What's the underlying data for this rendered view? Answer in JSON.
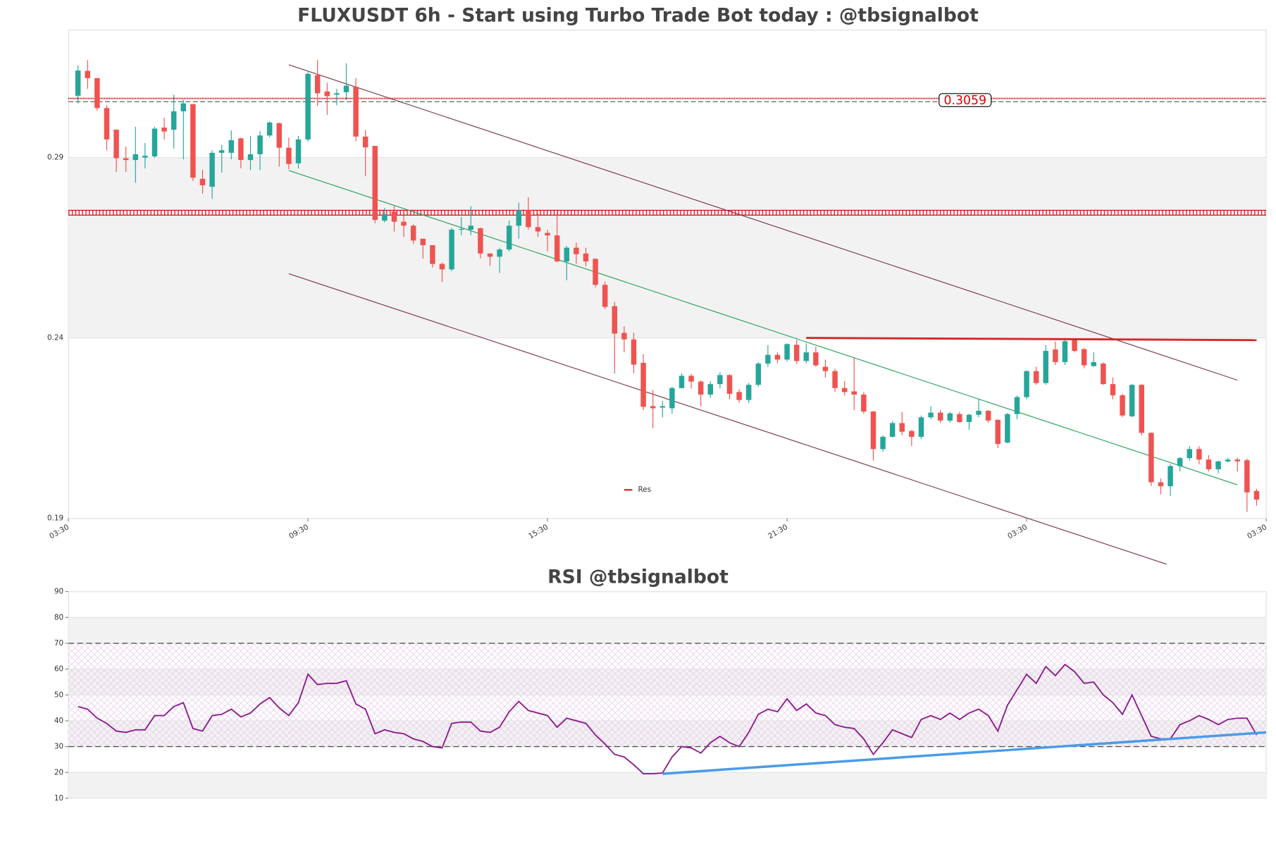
{
  "chart_data": [
    {
      "type": "candlestick",
      "title": "FLUXUSDT 6h - Start using Turbo Trade Bot today : @tbsignalbot",
      "open": [
        0.3071,
        0.314,
        0.312,
        0.3037,
        0.2977,
        0.2898,
        0.2893,
        0.29,
        0.2903,
        0.2983,
        0.2977,
        0.3028,
        0.3048,
        0.2841,
        0.2819,
        0.2913,
        0.2913,
        0.2953,
        0.2893,
        0.2909,
        0.2961,
        0.2995,
        0.2927,
        0.2884,
        0.295,
        0.3128,
        0.3083,
        0.3074,
        0.3081,
        0.3096,
        0.2958,
        0.2932,
        0.2725,
        0.275,
        0.2722,
        0.2711,
        0.2675,
        0.2657,
        0.2605,
        0.259,
        0.27,
        0.27,
        0.2704,
        0.2634,
        0.2625,
        0.2645,
        0.2711,
        0.2754,
        0.2707,
        0.2691,
        0.2684,
        0.2612,
        0.265,
        0.2634,
        0.2619,
        0.2547,
        0.2488,
        0.2414,
        0.2396,
        0.2331,
        0.2211,
        0.2207,
        0.2205,
        0.2261,
        0.2295,
        0.2279,
        0.2243,
        0.2272,
        0.2297,
        0.225,
        0.2228,
        0.227,
        0.2329,
        0.2353,
        0.234,
        0.2381,
        0.2336,
        0.236,
        0.232,
        0.2308,
        0.2261,
        0.2252,
        0.2243,
        0.2196,
        0.2092,
        0.2126,
        0.2164,
        0.2142,
        0.2126,
        0.218,
        0.2193,
        0.2171,
        0.2189,
        0.2167,
        0.2187,
        0.2198,
        0.2173,
        0.211,
        0.2189,
        0.2236,
        0.2308,
        0.2275,
        0.2368,
        0.2333,
        0.2396,
        0.2369,
        0.2322,
        0.2329,
        0.2272,
        0.2241,
        0.2183,
        0.227,
        0.2137,
        0.2,
        0.1989,
        0.2045,
        0.2067,
        0.2092,
        0.2063,
        0.2036,
        0.2058,
        0.2063,
        0.2061,
        0.1976
      ],
      "high": [
        0.3155,
        0.317,
        0.312,
        0.3045,
        0.2977,
        0.293,
        0.2985,
        0.294,
        0.2985,
        0.301,
        0.3074,
        0.306,
        0.3048,
        0.2866,
        0.292,
        0.2935,
        0.2975,
        0.2955,
        0.296,
        0.2973,
        0.3,
        0.2997,
        0.2955,
        0.296,
        0.3136,
        0.317,
        0.3107,
        0.309,
        0.3161,
        0.312,
        0.2976,
        0.2932,
        0.276,
        0.2765,
        0.274,
        0.2715,
        0.2675,
        0.2657,
        0.2609,
        0.2705,
        0.2735,
        0.2765,
        0.2706,
        0.2634,
        0.265,
        0.2725,
        0.2775,
        0.279,
        0.2745,
        0.27,
        0.2747,
        0.2655,
        0.2664,
        0.265,
        0.2621,
        0.2556,
        0.25,
        0.2432,
        0.2414,
        0.2355,
        0.2256,
        0.2225,
        0.2265,
        0.2302,
        0.23,
        0.2282,
        0.228,
        0.2305,
        0.23,
        0.2258,
        0.2275,
        0.2333,
        0.238,
        0.236,
        0.2385,
        0.2395,
        0.2385,
        0.2376,
        0.234,
        0.2315,
        0.228,
        0.2346,
        0.225,
        0.2198,
        0.213,
        0.217,
        0.2195,
        0.2145,
        0.2185,
        0.221,
        0.22,
        0.2195,
        0.2195,
        0.219,
        0.223,
        0.22,
        0.2175,
        0.2192,
        0.224,
        0.231,
        0.232,
        0.238,
        0.239,
        0.24,
        0.2398,
        0.2372,
        0.236,
        0.2332,
        0.229,
        0.2245,
        0.2272,
        0.2272,
        0.2138,
        0.201,
        0.205,
        0.207,
        0.21,
        0.21,
        0.2075,
        0.206,
        0.2068,
        0.2068,
        0.2066,
        0.1982
      ],
      "low": [
        0.305,
        0.309,
        0.303,
        0.292,
        0.286,
        0.286,
        0.283,
        0.287,
        0.29,
        0.295,
        0.2925,
        0.2895,
        0.2835,
        0.28,
        0.2785,
        0.2858,
        0.2895,
        0.287,
        0.2865,
        0.2865,
        0.2956,
        0.2875,
        0.2868,
        0.287,
        0.2944,
        0.3043,
        0.3018,
        0.3045,
        0.306,
        0.2945,
        0.2848,
        0.2718,
        0.272,
        0.2695,
        0.268,
        0.266,
        0.262,
        0.2595,
        0.2555,
        0.2585,
        0.2685,
        0.2685,
        0.262,
        0.26,
        0.258,
        0.264,
        0.2675,
        0.27,
        0.268,
        0.264,
        0.261,
        0.256,
        0.2605,
        0.2598,
        0.254,
        0.248,
        0.2301,
        0.236,
        0.2302,
        0.22,
        0.215,
        0.218,
        0.219,
        0.226,
        0.226,
        0.221,
        0.2234,
        0.226,
        0.223,
        0.222,
        0.222,
        0.2265,
        0.232,
        0.233,
        0.2335,
        0.2328,
        0.233,
        0.232,
        0.229,
        0.225,
        0.224,
        0.22,
        0.219,
        0.206,
        0.2085,
        0.2124,
        0.213,
        0.21,
        0.212,
        0.2175,
        0.2165,
        0.2165,
        0.2165,
        0.2145,
        0.218,
        0.2165,
        0.2095,
        0.2108,
        0.2175,
        0.223,
        0.227,
        0.227,
        0.2325,
        0.2325,
        0.236,
        0.2316,
        0.232,
        0.227,
        0.223,
        0.218,
        0.218,
        0.213,
        0.199,
        0.1967,
        0.1962,
        0.203,
        0.206,
        0.205,
        0.203,
        0.2025,
        0.2055,
        0.203,
        0.1918,
        0.1935
      ],
      "close": [
        0.3141,
        0.312,
        0.3037,
        0.295,
        0.2898,
        0.2893,
        0.2909,
        0.2905,
        0.298,
        0.2972,
        0.3028,
        0.305,
        0.2844,
        0.2823,
        0.2913,
        0.292,
        0.2948,
        0.2893,
        0.2909,
        0.2961,
        0.2997,
        0.2927,
        0.2882,
        0.295,
        0.3132,
        0.3078,
        0.307,
        0.3078,
        0.3099,
        0.2958,
        0.2928,
        0.2727,
        0.2743,
        0.2722,
        0.2711,
        0.267,
        0.2657,
        0.2605,
        0.259,
        0.27,
        0.2702,
        0.2711,
        0.2634,
        0.2625,
        0.2645,
        0.2711,
        0.2754,
        0.2707,
        0.2695,
        0.2684,
        0.2612,
        0.265,
        0.2632,
        0.2612,
        0.2547,
        0.2486,
        0.2412,
        0.2396,
        0.2326,
        0.2209,
        0.2205,
        0.2211,
        0.2261,
        0.2295,
        0.2279,
        0.2243,
        0.2272,
        0.2297,
        0.2245,
        0.2228,
        0.227,
        0.2329,
        0.2353,
        0.234,
        0.2383,
        0.2336,
        0.236,
        0.2324,
        0.2308,
        0.2261,
        0.225,
        0.2243,
        0.2196,
        0.2092,
        0.2126,
        0.2164,
        0.214,
        0.2126,
        0.218,
        0.2193,
        0.2171,
        0.2191,
        0.2167,
        0.2187,
        0.2198,
        0.2171,
        0.2106,
        0.2189,
        0.2236,
        0.2308,
        0.2275,
        0.2364,
        0.2333,
        0.2391,
        0.2364,
        0.2324,
        0.2333,
        0.2272,
        0.2241,
        0.2185,
        0.227,
        0.2137,
        0.2,
        0.1989,
        0.2045,
        0.2067,
        0.2092,
        0.2063,
        0.2036,
        0.2058,
        0.2063,
        0.2058,
        0.1972,
        0.1952
      ],
      "colors": {
        "up": "#26a69a",
        "down": "#ef5350"
      },
      "xlim": [
        -1,
        124
      ],
      "xticks": [
        {
          "value": -1,
          "label": "03:30"
        },
        {
          "value": 24,
          "label": "09:30"
        },
        {
          "value": 49,
          "label": "15:30"
        },
        {
          "value": 74,
          "label": "21:30"
        },
        {
          "value": 99,
          "label": "03:30"
        },
        {
          "value": 124,
          "label": "03:30"
        }
      ],
      "ylim": [
        0.19,
        0.3253
      ],
      "yticks": [
        0.19,
        0.24,
        0.29
      ],
      "band": [
        0.24,
        0.29
      ],
      "levels": [
        {
          "value": 0.3059,
          "style": "dotted",
          "color": "#cc0000",
          "tag": true
        },
        {
          "value": 0.2747,
          "style": "cross",
          "color": "#cc0000"
        }
      ],
      "lines": [
        {
          "name": "Res",
          "color": "#d62728",
          "x": [
            76,
            123
          ],
          "values": [
            0.24,
            0.2394
          ]
        }
      ],
      "trendlines": [
        {
          "color": "#7a3b4a",
          "x": [
            22,
            121
          ],
          "values": [
            0.3157,
            0.2283
          ]
        },
        {
          "color": "#2ca05a",
          "x": [
            22,
            121
          ],
          "values": [
            0.2864,
            0.1993
          ]
        },
        {
          "color": "#7a3b4a",
          "x": [
            22,
            113.6
          ],
          "values": [
            0.2578,
            0.1773
          ]
        }
      ]
    },
    {
      "type": "line",
      "title": "RSI @tbsignalbot",
      "values": [
        45.5,
        44.5,
        41,
        39,
        36,
        35.5,
        36.5,
        36.5,
        42,
        42,
        45.5,
        47,
        37,
        36,
        42,
        42.5,
        44.5,
        41.5,
        43,
        46.5,
        49,
        45,
        42,
        47,
        58,
        54,
        54.5,
        54.5,
        55.5,
        46.5,
        44.5,
        35,
        36.5,
        35.5,
        35,
        33,
        32,
        30,
        29.5,
        39,
        39.5,
        39.5,
        36,
        35.5,
        37.5,
        43.5,
        47.5,
        44,
        43,
        42,
        37.5,
        41,
        40,
        39,
        34.5,
        31,
        27,
        26,
        23,
        19.5,
        19.5,
        19.8,
        26,
        30,
        29.5,
        27.5,
        31.5,
        34,
        31.5,
        30,
        35.5,
        42.5,
        44.5,
        43.5,
        48.5,
        44,
        46.5,
        43,
        42,
        38.5,
        37.5,
        37,
        33,
        27,
        31.5,
        36.5,
        35,
        33.5,
        40.5,
        42,
        40.5,
        43,
        40.5,
        43,
        44.5,
        42,
        36,
        46,
        52,
        58,
        54.5,
        61,
        57.5,
        61.8,
        59,
        54.5,
        55,
        50,
        47,
        42.5,
        50,
        42,
        34,
        33,
        33,
        38.5,
        40,
        42,
        40.5,
        38.5,
        40.5,
        41,
        41,
        34.5
      ],
      "color": "#8b1a8b",
      "xlim": [
        -1,
        124
      ],
      "ylim": [
        10,
        90
      ],
      "yticks": [
        10,
        20,
        30,
        40,
        50,
        60,
        70,
        80,
        90
      ],
      "hlines": [
        30,
        70
      ],
      "trendline": {
        "color": "#4a9be8",
        "x": [
          61,
          124
        ],
        "values": [
          19.5,
          35.5
        ]
      }
    }
  ]
}
